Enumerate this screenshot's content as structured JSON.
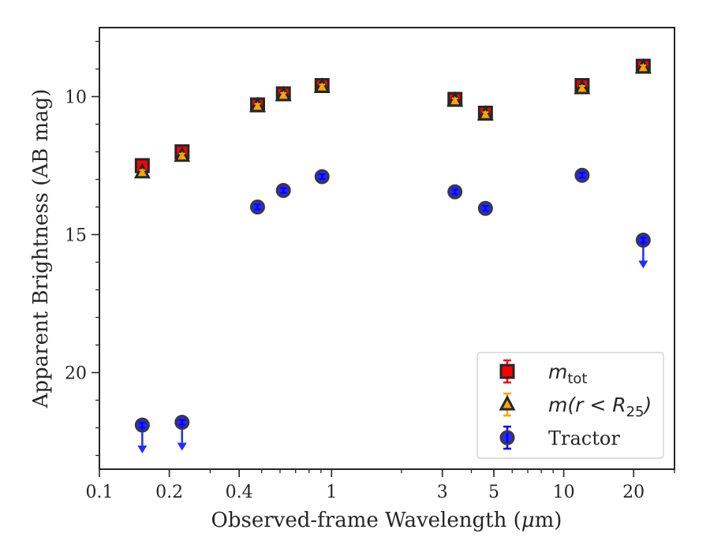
{
  "chart_data": {
    "type": "scatter",
    "title": "",
    "xlabel": "Observed-frame Wavelength (μm)",
    "xlabel_parts": {
      "before": "Observed-frame Wavelength (",
      "mu": "μ",
      "after": "m)"
    },
    "ylabel": "Apparent Brightness (AB mag)",
    "x_scale": "log",
    "xlim": [
      0.1,
      30
    ],
    "ylim": [
      23.5,
      7.5
    ],
    "y_inverted": true,
    "grid": false,
    "legend_position": "bottom-right",
    "x_ticks": [
      {
        "value": 0.1,
        "label": "0.1"
      },
      {
        "value": 0.2,
        "label": "0.2"
      },
      {
        "value": 0.4,
        "label": "0.4"
      },
      {
        "value": 1,
        "label": "1"
      },
      {
        "value": 3,
        "label": "3"
      },
      {
        "value": 5,
        "label": "5"
      },
      {
        "value": 10,
        "label": "10"
      },
      {
        "value": 20,
        "label": "20"
      }
    ],
    "y_ticks": [
      {
        "value": 10,
        "label": "10"
      },
      {
        "value": 15,
        "label": "15"
      },
      {
        "value": 20,
        "label": "20"
      }
    ],
    "series": [
      {
        "name": "m_tot",
        "legend_label": {
          "base": "m",
          "sub": "tot"
        },
        "marker": "square",
        "color": "#ff0000",
        "edge_color": "#262626",
        "points": [
          {
            "x": 0.153,
            "y": 12.5
          },
          {
            "x": 0.227,
            "y": 12.0
          },
          {
            "x": 0.48,
            "y": 10.3
          },
          {
            "x": 0.62,
            "y": 9.9
          },
          {
            "x": 0.91,
            "y": 9.6
          },
          {
            "x": 3.4,
            "y": 10.1
          },
          {
            "x": 4.6,
            "y": 10.6
          },
          {
            "x": 12.0,
            "y": 9.6
          },
          {
            "x": 22.0,
            "y": 8.9
          }
        ]
      },
      {
        "name": "m(r < R25)",
        "legend_label": {
          "base": "m(r < R",
          "sub": "25",
          "after": ")"
        },
        "marker": "triangle",
        "color": "#ffa500",
        "edge_color": "#262626",
        "points": [
          {
            "x": 0.153,
            "y": 12.75
          },
          {
            "x": 0.227,
            "y": 12.15
          },
          {
            "x": 0.48,
            "y": 10.35
          },
          {
            "x": 0.62,
            "y": 9.95
          },
          {
            "x": 0.91,
            "y": 9.65
          },
          {
            "x": 3.4,
            "y": 10.15
          },
          {
            "x": 4.6,
            "y": 10.65
          },
          {
            "x": 12.0,
            "y": 9.7
          },
          {
            "x": 22.0,
            "y": 8.95
          }
        ]
      },
      {
        "name": "Tractor",
        "legend_label": {
          "base": "Tractor"
        },
        "marker": "circle",
        "color": "#0000ff",
        "edge_color": "#3a3a3a",
        "points": [
          {
            "x": 0.153,
            "y": 21.9,
            "upper_limit": true
          },
          {
            "x": 0.227,
            "y": 21.8,
            "upper_limit": true
          },
          {
            "x": 0.48,
            "y": 14.0
          },
          {
            "x": 0.62,
            "y": 13.4
          },
          {
            "x": 0.91,
            "y": 12.9
          },
          {
            "x": 3.4,
            "y": 13.45
          },
          {
            "x": 4.6,
            "y": 14.05
          },
          {
            "x": 12.0,
            "y": 12.85
          },
          {
            "x": 22.0,
            "y": 15.2,
            "upper_limit": true
          }
        ]
      }
    ]
  }
}
